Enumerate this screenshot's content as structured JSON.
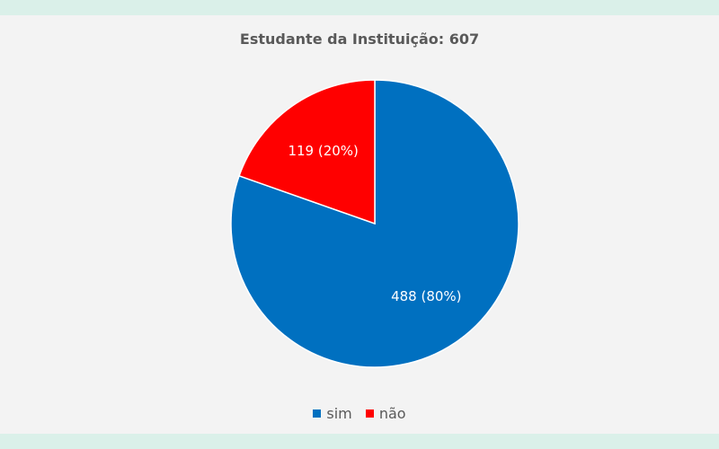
{
  "chart_data": {
    "type": "pie",
    "title": "Estudante da Instituição: 607",
    "categories": [
      "sim",
      "não"
    ],
    "values": [
      488,
      119
    ],
    "percents": [
      80,
      20
    ],
    "data_labels": [
      "488 (80%)",
      "119 (20%)"
    ],
    "colors": [
      "#0070c0",
      "#ff0000"
    ],
    "legend": {
      "position": "bottom",
      "entries": [
        "sim",
        "não"
      ]
    }
  }
}
